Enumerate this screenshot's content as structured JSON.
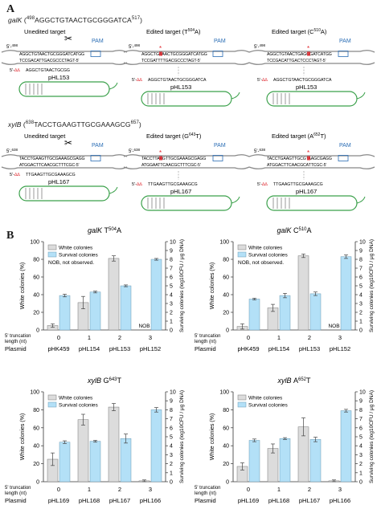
{
  "panelA": {
    "letter": "A",
    "rows": [
      {
        "gene": "galK",
        "start_sup": "498",
        "sequence": "AGGCTGTAACTGCGGGATCA",
        "end_sup": "517",
        "panels": [
          {
            "title": "Unedited target",
            "pos_label": "5'-",
            "pos_sup": "498",
            "top_seq": "AGGCTGTAACTGCGGGATCATGG",
            "bottom_seq": "TCCGACATTGACGCCCTAGT-5'",
            "guide": "5'-",
            "guide_seq": "AGGCTGTAACTGCGG",
            "pam": "PAM",
            "has_scissors": true,
            "plasmid": "pHL153",
            "mismatch": false
          },
          {
            "title": "Edited target (T",
            "title_sup": "504",
            "title_end": "A)",
            "pos_label": "5'-",
            "pos_sup": "498",
            "top_seq": "AGGCTGAAACTGCGGGATCATGG",
            "bottom_seq": "TCCGATTTTGACGCCCTAGT-5'",
            "guide": "5'-",
            "guide_seq": "AGGCTGTAACTGCGGGATCA",
            "pam": "PAM",
            "has_scissors": false,
            "plasmid": "pHL153",
            "mismatch": true
          },
          {
            "title": "Edited target (C",
            "title_sup": "510",
            "title_end": "A)",
            "pos_label": "5'-",
            "pos_sup": "498",
            "top_seq": "AGGCTGTAACTGAGGGATCATGG",
            "bottom_seq": "TCCGACATTGACTCCCTAGT-5'",
            "guide": "5'-",
            "guide_seq": "AGGCTGTAACTGCGGGATCA",
            "pam": "PAM",
            "has_scissors": false,
            "plasmid": "pHL153",
            "mismatch": true
          }
        ]
      },
      {
        "gene": "xylB",
        "start_sup": "638",
        "sequence": "TACCTGAAGTTGCGAAAGCG",
        "end_sup": "657",
        "panels": [
          {
            "title": "Unedited target",
            "pos_label": "5'-",
            "pos_sup": "638",
            "top_seq": "TACCTGAAGTTGCGAAAGCGAGG",
            "bottom_seq": "ATGGACTTCAACGCTTTCGC-5'",
            "guide": "5'-",
            "guide_seq": "TTGAAGTTGCGAAAGCG",
            "pam": "PAM",
            "has_scissors": true,
            "plasmid": "pHL167",
            "mismatch": false
          },
          {
            "title": "Edited target (G",
            "title_sup": "643",
            "title_end": "T)",
            "pos_label": "5'-",
            "pos_sup": "638",
            "top_seq": "TACCTTAAGTTGCGAAAGCGAGG",
            "bottom_seq": "ATGGAATTCAACGCTTTCGC-5'",
            "guide": "5'-",
            "guide_seq": "TTGAAGTTGCGAAAGCG",
            "pam": "PAM",
            "has_scissors": false,
            "plasmid": "pHL167",
            "mismatch": true
          },
          {
            "title": "Edited target (A",
            "title_sup": "652",
            "title_end": "T)",
            "pos_label": "5'-",
            "pos_sup": "638",
            "top_seq": "TACCTGAAGTTGCGTAAGCGAGG",
            "bottom_seq": "ATGGACTTCAACGCATTCGC-5'",
            "guide": "5'-",
            "guide_seq": "TTGAAGTTGCGAAAGCG",
            "pam": "PAM",
            "has_scissors": false,
            "plasmid": "pHL167",
            "mismatch": true
          }
        ]
      }
    ]
  },
  "panelB": {
    "letter": "B",
    "legend": {
      "white": "White colonies",
      "survival": "Survival colonies",
      "nob_note": "NOB, not observed."
    },
    "y_left_label": "White colonies (%)",
    "y_right_label": "Surviving colonies (log10CFU / μg DNA)",
    "row_label_truncation": "5' truncation length (nt)",
    "row_label_plasmid": "Plasmid",
    "colors": {
      "white_bar": "#dcdcdc",
      "survival_bar": "#b3e0f7",
      "mismatch": "#e0242b",
      "loop": "#3aa04a",
      "pam": "#2a6db5"
    }
  },
  "chart_data": [
    {
      "type": "bar",
      "title": "galK T504A",
      "title_gene": "galK",
      "title_base": "T",
      "title_sup": "504",
      "title_end": "A",
      "categories": [
        "0",
        "1",
        "2",
        "3"
      ],
      "plasmids": [
        "pHK459",
        "pHL154",
        "pHL153",
        "pHL152"
      ],
      "series": [
        {
          "name": "White colonies",
          "axis": "left",
          "values": [
            5,
            31,
            81,
            null
          ],
          "errors": [
            2,
            7,
            3,
            null
          ]
        },
        {
          "name": "Survival colonies",
          "axis": "right",
          "values": [
            3.9,
            4.3,
            5.0,
            8.0
          ],
          "errors": [
            0.15,
            0.1,
            0.1,
            0.1
          ]
        }
      ],
      "nob_labels": [
        "",
        "",
        "",
        "NOB"
      ],
      "ylim_left": [
        0,
        100
      ],
      "ylim_right": [
        0,
        10
      ],
      "yticks_left": [
        0,
        20,
        40,
        60,
        80,
        100
      ],
      "yticks_right": [
        0,
        1,
        2,
        3,
        4,
        5,
        6,
        7,
        8,
        9,
        10
      ],
      "show_legend": true
    },
    {
      "type": "bar",
      "title": "galK C510A",
      "title_gene": "galK",
      "title_base": "C",
      "title_sup": "510",
      "title_end": "A",
      "categories": [
        "0",
        "1",
        "2",
        "3"
      ],
      "plasmids": [
        "pHK459",
        "pHL154",
        "pHL153",
        "pHL152"
      ],
      "series": [
        {
          "name": "White colonies",
          "axis": "left",
          "values": [
            4,
            25,
            84,
            null
          ],
          "errors": [
            3,
            4,
            2,
            null
          ]
        },
        {
          "name": "Survival colonies",
          "axis": "right",
          "values": [
            3.5,
            3.9,
            4.1,
            8.3
          ],
          "errors": [
            0.1,
            0.25,
            0.2,
            0.2
          ]
        }
      ],
      "nob_labels": [
        "",
        "",
        "",
        "NOB"
      ],
      "ylim_left": [
        0,
        100
      ],
      "ylim_right": [
        0,
        10
      ],
      "yticks_left": [
        0,
        20,
        40,
        60,
        80,
        100
      ],
      "yticks_right": [
        0,
        1,
        2,
        3,
        4,
        5,
        6,
        7,
        8,
        9,
        10
      ],
      "show_legend": true
    },
    {
      "type": "bar",
      "title": "xylB G643T",
      "title_gene": "xylB",
      "title_base": "G",
      "title_sup": "643",
      "title_end": "T",
      "categories": [
        "0",
        "1",
        "2",
        "3"
      ],
      "plasmids": [
        "pHL169",
        "pHL168",
        "pHL167",
        "pHL166"
      ],
      "series": [
        {
          "name": "White colonies",
          "axis": "left",
          "values": [
            25,
            69,
            83,
            1
          ],
          "errors": [
            7,
            6,
            4,
            1
          ]
        },
        {
          "name": "Survival colonies",
          "axis": "right",
          "values": [
            4.4,
            4.5,
            4.8,
            8.0
          ],
          "errors": [
            0.15,
            0.1,
            0.5,
            0.25
          ]
        }
      ],
      "nob_labels": [
        "",
        "",
        "",
        ""
      ],
      "ylim_left": [
        0,
        100
      ],
      "ylim_right": [
        0,
        10
      ],
      "yticks_left": [
        0,
        20,
        40,
        60,
        80,
        100
      ],
      "yticks_right": [
        0,
        1,
        2,
        3,
        4,
        5,
        6,
        7,
        8,
        9,
        10
      ],
      "show_legend": true
    },
    {
      "type": "bar",
      "title": "xylB A652T",
      "title_gene": "xylB",
      "title_base": "A",
      "title_sup": "652",
      "title_end": "T",
      "categories": [
        "0",
        "1",
        "2",
        "3"
      ],
      "plasmids": [
        "pHL169",
        "pHL168",
        "pHL167",
        "pHL166"
      ],
      "series": [
        {
          "name": "White colonies",
          "axis": "left",
          "values": [
            17,
            37,
            61,
            1
          ],
          "errors": [
            4,
            5,
            10,
            1
          ]
        },
        {
          "name": "Survival colonies",
          "axis": "right",
          "values": [
            4.6,
            4.8,
            4.7,
            7.9
          ],
          "errors": [
            0.15,
            0.1,
            0.25,
            0.15
          ]
        }
      ],
      "nob_labels": [
        "",
        "",
        "",
        ""
      ],
      "ylim_left": [
        0,
        100
      ],
      "ylim_right": [
        0,
        10
      ],
      "yticks_left": [
        0,
        20,
        40,
        60,
        80,
        100
      ],
      "yticks_right": [
        0,
        1,
        2,
        3,
        4,
        5,
        6,
        7,
        8,
        9,
        10
      ],
      "show_legend": true
    }
  ]
}
